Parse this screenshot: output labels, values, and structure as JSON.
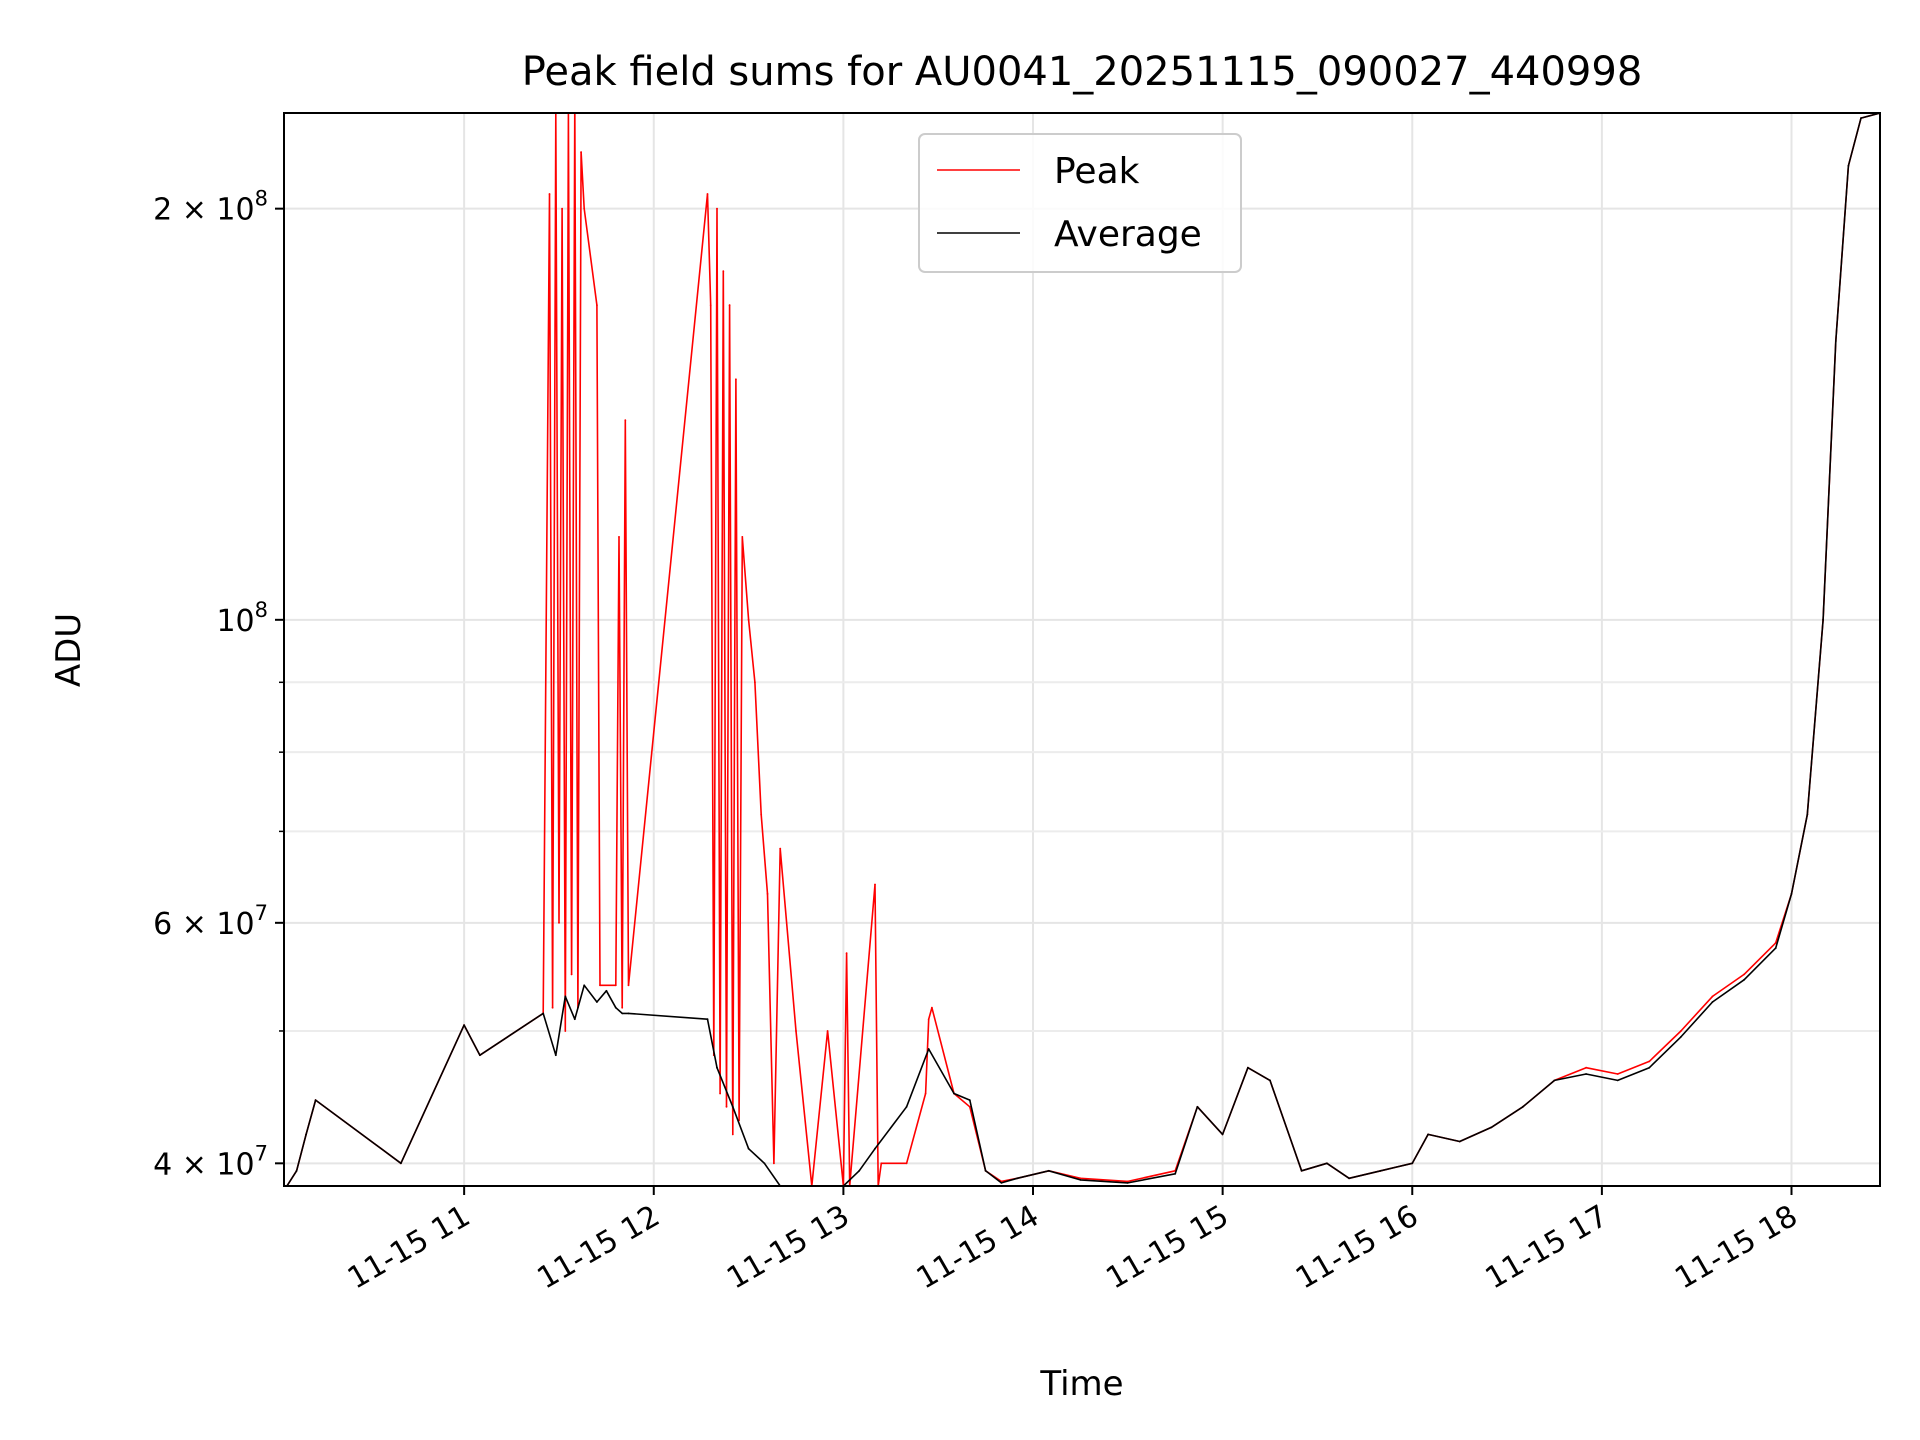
{
  "chart_data": {
    "type": "line",
    "title": "Peak field sums for AU0041_20251115_090027_440998",
    "xlabel": "Time",
    "ylabel": "ADU",
    "y_scale": "log",
    "xlim": [
      "2025-11-15 10:03",
      "2025-11-15 18:28"
    ],
    "ylim": [
      38500000,
      235000000
    ],
    "grid": true,
    "legend_position": "top-center",
    "x_tick_labels": [
      "11-15 11",
      "11-15 12",
      "11-15 13",
      "11-15 14",
      "11-15 15",
      "11-15 16",
      "11-15 17",
      "11-15 18"
    ],
    "x_tick_values": [
      "2025-11-15 11:00",
      "2025-11-15 12:00",
      "2025-11-15 13:00",
      "2025-11-15 14:00",
      "2025-11-15 15:00",
      "2025-11-15 16:00",
      "2025-11-15 17:00",
      "2025-11-15 18:00"
    ],
    "y_ticks": [
      {
        "value": 40000000,
        "mantissa": "4",
        "exponent": "7"
      },
      {
        "value": 60000000,
        "mantissa": "6",
        "exponent": "7"
      },
      {
        "value": 100000000,
        "mantissa": "",
        "exponent": "8"
      },
      {
        "value": 200000000,
        "mantissa": "2",
        "exponent": "8"
      }
    ],
    "y_minor_ticks": [
      50000000,
      70000000,
      80000000,
      90000000
    ],
    "series": [
      {
        "name": "Peak",
        "color": "#ff0000",
        "x": [
          "2025-11-15 10:03",
          "2025-11-15 10:07",
          "2025-11-15 10:10",
          "2025-11-15 10:13",
          "2025-11-15 10:40",
          "2025-11-15 11:00",
          "2025-11-15 11:05",
          "2025-11-15 11:25",
          "2025-11-15 11:27",
          "2025-11-15 11:28",
          "2025-11-15 11:29",
          "2025-11-15 11:30",
          "2025-11-15 11:31",
          "2025-11-15 11:32",
          "2025-11-15 11:33",
          "2025-11-15 11:34",
          "2025-11-15 11:35",
          "2025-11-15 11:36",
          "2025-11-15 11:37",
          "2025-11-15 11:38",
          "2025-11-15 11:42",
          "2025-11-15 11:43",
          "2025-11-15 11:48",
          "2025-11-15 11:49",
          "2025-11-15 11:50",
          "2025-11-15 11:51",
          "2025-11-15 11:52",
          "2025-11-15 12:17",
          "2025-11-15 12:18",
          "2025-11-15 12:19",
          "2025-11-15 12:20",
          "2025-11-15 12:21",
          "2025-11-15 12:22",
          "2025-11-15 12:23",
          "2025-11-15 12:24",
          "2025-11-15 12:25",
          "2025-11-15 12:26",
          "2025-11-15 12:27",
          "2025-11-15 12:28",
          "2025-11-15 12:30",
          "2025-11-15 12:32",
          "2025-11-15 12:34",
          "2025-11-15 12:36",
          "2025-11-15 12:38",
          "2025-11-15 12:40",
          "2025-11-15 12:45",
          "2025-11-15 12:50",
          "2025-11-15 12:55",
          "2025-11-15 13:00",
          "2025-11-15 13:01",
          "2025-11-15 13:02",
          "2025-11-15 13:10",
          "2025-11-15 13:11",
          "2025-11-15 13:12",
          "2025-11-15 13:20",
          "2025-11-15 13:26",
          "2025-11-15 13:27",
          "2025-11-15 13:28",
          "2025-11-15 13:35",
          "2025-11-15 13:40",
          "2025-11-15 13:45",
          "2025-11-15 13:50",
          "2025-11-15 13:55",
          "2025-11-15 14:05",
          "2025-11-15 14:15",
          "2025-11-15 14:30",
          "2025-11-15 14:45",
          "2025-11-15 14:52",
          "2025-11-15 15:00",
          "2025-11-15 15:08",
          "2025-11-15 15:15",
          "2025-11-15 15:25",
          "2025-11-15 15:33",
          "2025-11-15 15:40",
          "2025-11-15 15:50",
          "2025-11-15 16:00",
          "2025-11-15 16:05",
          "2025-11-15 16:15",
          "2025-11-15 16:25",
          "2025-11-15 16:35",
          "2025-11-15 16:45",
          "2025-11-15 16:55",
          "2025-11-15 17:05",
          "2025-11-15 17:15",
          "2025-11-15 17:25",
          "2025-11-15 17:35",
          "2025-11-15 17:45",
          "2025-11-15 17:55",
          "2025-11-15 18:00",
          "2025-11-15 18:05",
          "2025-11-15 18:10",
          "2025-11-15 18:14",
          "2025-11-15 18:18",
          "2025-11-15 18:22",
          "2025-11-15 18:28"
        ],
        "y": [
          38200000,
          39500000,
          42000000,
          44500000,
          40000000,
          50500000,
          48000000,
          51500000,
          205000000,
          52000000,
          235000000,
          60000000,
          200000000,
          50000000,
          235000000,
          55000000,
          240000000,
          52000000,
          220000000,
          200000000,
          170000000,
          54000000,
          54000000,
          115000000,
          52000000,
          140000000,
          54000000,
          205000000,
          170000000,
          48000000,
          200000000,
          45000000,
          180000000,
          44000000,
          170000000,
          42000000,
          150000000,
          43000000,
          115000000,
          100000000,
          90000000,
          72000000,
          63000000,
          40000000,
          68000000,
          50000000,
          38500000,
          50000000,
          38500000,
          57000000,
          38500000,
          64000000,
          38500000,
          40000000,
          40000000,
          45000000,
          51000000,
          52000000,
          45000000,
          44000000,
          39500000,
          38800000,
          39000000,
          39500000,
          39000000,
          38800000,
          39500000,
          44000000,
          42000000,
          47000000,
          46000000,
          39500000,
          40000000,
          39000000,
          39500000,
          40000000,
          42000000,
          41500000,
          42500000,
          44000000,
          46000000,
          47000000,
          46500000,
          47500000,
          50000000,
          53000000,
          55000000,
          58000000,
          63000000,
          72000000,
          100000000,
          160000000,
          215000000,
          233000000,
          235000000
        ]
      },
      {
        "name": "Average",
        "color": "#000000",
        "x": [
          "2025-11-15 10:03",
          "2025-11-15 10:07",
          "2025-11-15 10:10",
          "2025-11-15 10:13",
          "2025-11-15 10:40",
          "2025-11-15 11:00",
          "2025-11-15 11:05",
          "2025-11-15 11:25",
          "2025-11-15 11:29",
          "2025-11-15 11:32",
          "2025-11-15 11:35",
          "2025-11-15 11:38",
          "2025-11-15 11:42",
          "2025-11-15 11:45",
          "2025-11-15 11:48",
          "2025-11-15 11:50",
          "2025-11-15 11:52",
          "2025-11-15 12:17",
          "2025-11-15 12:20",
          "2025-11-15 12:25",
          "2025-11-15 12:30",
          "2025-11-15 12:35",
          "2025-11-15 12:40",
          "2025-11-15 12:45",
          "2025-11-15 12:50",
          "2025-11-15 13:00",
          "2025-11-15 13:05",
          "2025-11-15 13:10",
          "2025-11-15 13:20",
          "2025-11-15 13:27",
          "2025-11-15 13:35",
          "2025-11-15 13:40",
          "2025-11-15 13:45",
          "2025-11-15 13:50",
          "2025-11-15 13:55",
          "2025-11-15 14:05",
          "2025-11-15 14:15",
          "2025-11-15 14:30",
          "2025-11-15 14:45",
          "2025-11-15 14:52",
          "2025-11-15 15:00",
          "2025-11-15 15:08",
          "2025-11-15 15:15",
          "2025-11-15 15:25",
          "2025-11-15 15:33",
          "2025-11-15 15:40",
          "2025-11-15 15:50",
          "2025-11-15 16:00",
          "2025-11-15 16:05",
          "2025-11-15 16:15",
          "2025-11-15 16:25",
          "2025-11-15 16:35",
          "2025-11-15 16:45",
          "2025-11-15 16:55",
          "2025-11-15 17:05",
          "2025-11-15 17:15",
          "2025-11-15 17:25",
          "2025-11-15 17:35",
          "2025-11-15 17:45",
          "2025-11-15 17:55",
          "2025-11-15 18:00",
          "2025-11-15 18:05",
          "2025-11-15 18:10",
          "2025-11-15 18:14",
          "2025-11-15 18:18",
          "2025-11-15 18:22",
          "2025-11-15 18:28"
        ],
        "y": [
          38200000,
          39500000,
          42000000,
          44500000,
          40000000,
          50500000,
          48000000,
          51500000,
          48000000,
          53000000,
          51000000,
          54000000,
          52500000,
          53500000,
          52000000,
          51500000,
          51500000,
          51000000,
          47000000,
          44000000,
          41000000,
          40000000,
          38500000,
          38500000,
          38500000,
          38500000,
          39500000,
          41000000,
          44000000,
          48500000,
          45000000,
          44500000,
          39500000,
          38700000,
          39000000,
          39500000,
          38900000,
          38700000,
          39300000,
          44000000,
          42000000,
          47000000,
          46000000,
          39500000,
          40000000,
          39000000,
          39500000,
          40000000,
          42000000,
          41500000,
          42500000,
          44000000,
          46000000,
          46500000,
          46000000,
          47000000,
          49500000,
          52500000,
          54500000,
          57500000,
          63000000,
          72000000,
          100000000,
          160000000,
          215000000,
          233000000,
          235000000
        ]
      }
    ]
  }
}
